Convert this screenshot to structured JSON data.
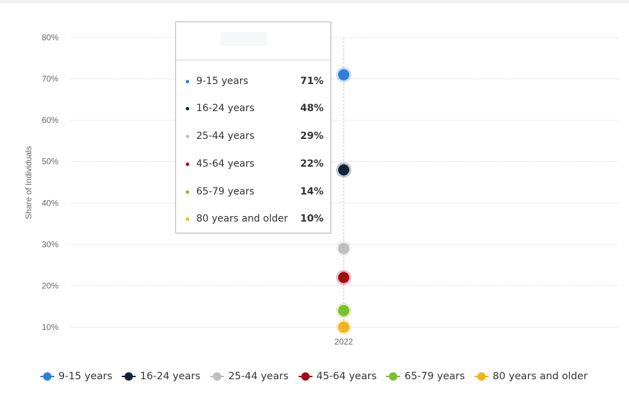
{
  "chart_data": {
    "type": "scatter",
    "categories": [
      "2022"
    ],
    "ylabel": "Share of Individuals",
    "ylim": [
      10,
      80
    ],
    "yticks": [
      "10%",
      "20%",
      "30%",
      "40%",
      "50%",
      "60%",
      "70%",
      "80%"
    ],
    "grid": true,
    "legend_position": "bottom",
    "series": [
      {
        "name": "9-15 years",
        "values": [
          71
        ],
        "color": "#2f7ed8",
        "label": "71%"
      },
      {
        "name": "16-24 years",
        "values": [
          48
        ],
        "color": "#0d233a",
        "label": "48%"
      },
      {
        "name": "25-44 years",
        "values": [
          29
        ],
        "color": "#bfbfbf",
        "label": "29%"
      },
      {
        "name": "45-64 years",
        "values": [
          22
        ],
        "color": "#a30d14",
        "label": "22%"
      },
      {
        "name": "65-79 years",
        "values": [
          14
        ],
        "color": "#7dc02b",
        "label": "14%"
      },
      {
        "name": "80 years and older",
        "values": [
          10
        ],
        "color": "#f1b41c",
        "label": "10%"
      }
    ]
  },
  "tooltip": {
    "rows": [
      {
        "name": "9-15 years",
        "value": "71%"
      },
      {
        "name": "16-24 years",
        "value": "48%"
      },
      {
        "name": "25-44 years",
        "value": "29%"
      },
      {
        "name": "45-64 years",
        "value": "22%"
      },
      {
        "name": "65-79 years",
        "value": "14%"
      },
      {
        "name": "80 years and older",
        "value": "10%"
      }
    ]
  }
}
